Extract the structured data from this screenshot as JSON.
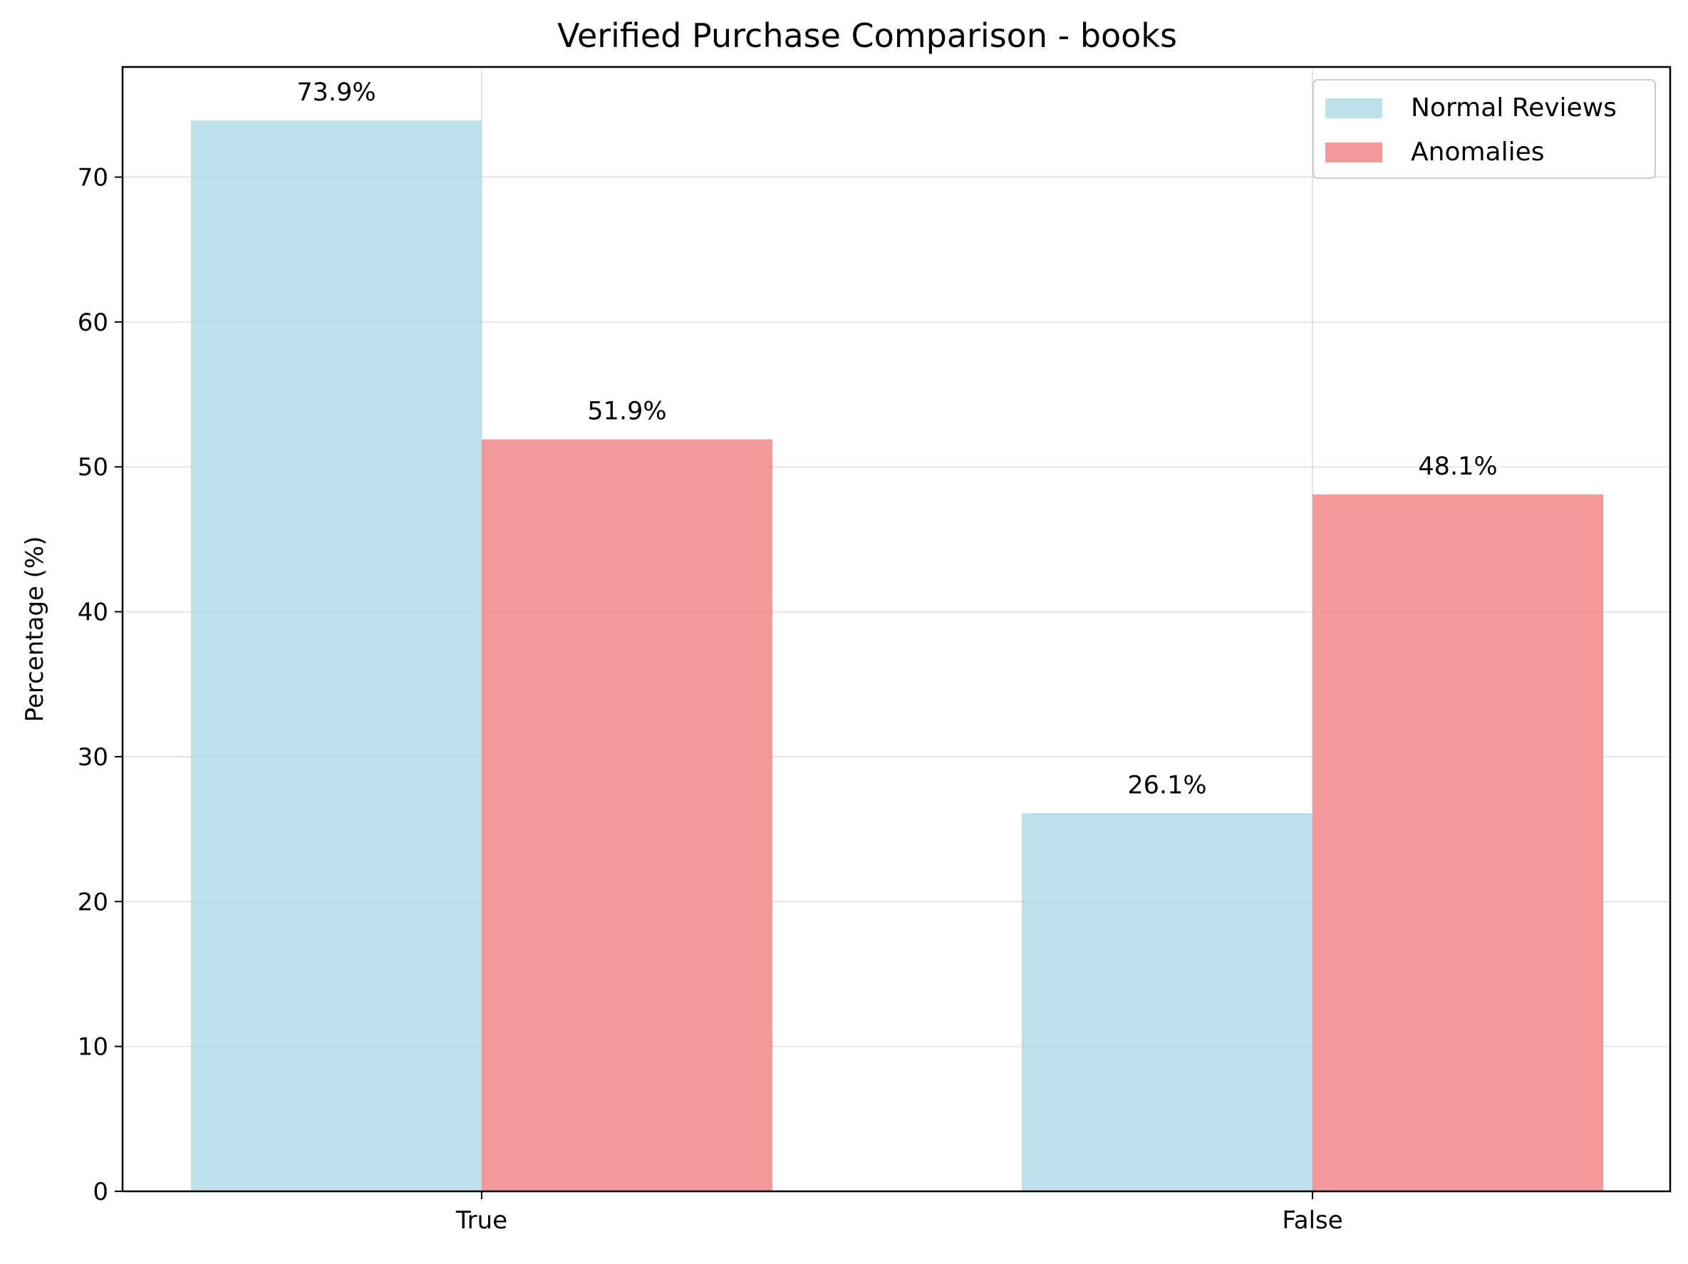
{
  "chart_data": {
    "type": "bar",
    "title": "Verified Purchase Comparison - books",
    "xlabel": "",
    "ylabel": "Percentage (%)",
    "categories": [
      "True",
      "False"
    ],
    "series": [
      {
        "name": "Normal Reviews",
        "values": [
          73.9,
          26.1
        ],
        "labels": [
          "73.9%",
          "26.1%"
        ],
        "color": "#add8e6"
      },
      {
        "name": "Anomalies",
        "values": [
          51.9,
          48.1
        ],
        "labels": [
          "51.9%",
          "48.1%"
        ],
        "color": "#f08080"
      }
    ],
    "ylim": [
      0,
      77.6
    ],
    "yticks": [
      0,
      10,
      20,
      30,
      40,
      50,
      60,
      70
    ],
    "grid": true,
    "legend_position": "top-right"
  }
}
